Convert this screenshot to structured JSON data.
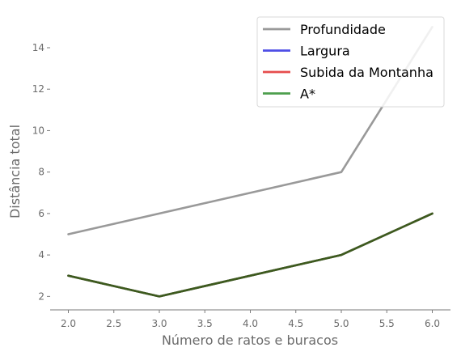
{
  "chart_data": {
    "type": "line",
    "title": "",
    "xlabel": "Número de ratos e buracos",
    "ylabel": "Distância total",
    "x": [
      2,
      3,
      5,
      6
    ],
    "xlim": [
      1.8,
      6.2
    ],
    "ylim": [
      1.35,
      15.6
    ],
    "xticks": [
      2.0,
      2.5,
      3.0,
      3.5,
      4.0,
      4.5,
      5.0,
      5.5,
      6.0
    ],
    "xtick_labels": [
      "2.0",
      "2.5",
      "3.0",
      "3.5",
      "4.0",
      "4.5",
      "5.0",
      "5.5",
      "6.0"
    ],
    "yticks": [
      2,
      4,
      6,
      8,
      10,
      12,
      14
    ],
    "ytick_labels": [
      "2",
      "4",
      "6",
      "8",
      "10",
      "12",
      "14"
    ],
    "grid": false,
    "legend_position": "top-right",
    "series": [
      {
        "name": "Profundidade",
        "values": [
          5,
          6,
          8,
          15
        ],
        "color": "#999999"
      },
      {
        "name": "Largura",
        "values": [
          3,
          2,
          4,
          6
        ],
        "color": "#4d4de6"
      },
      {
        "name": "Subida da Montanha",
        "values": [
          3,
          2,
          4,
          6
        ],
        "color": "#e64d4d"
      },
      {
        "name": "A*",
        "values": [
          3,
          2,
          4,
          6
        ],
        "color": "#4d9e4d"
      }
    ],
    "overlap_color": "#3d5a1e"
  }
}
